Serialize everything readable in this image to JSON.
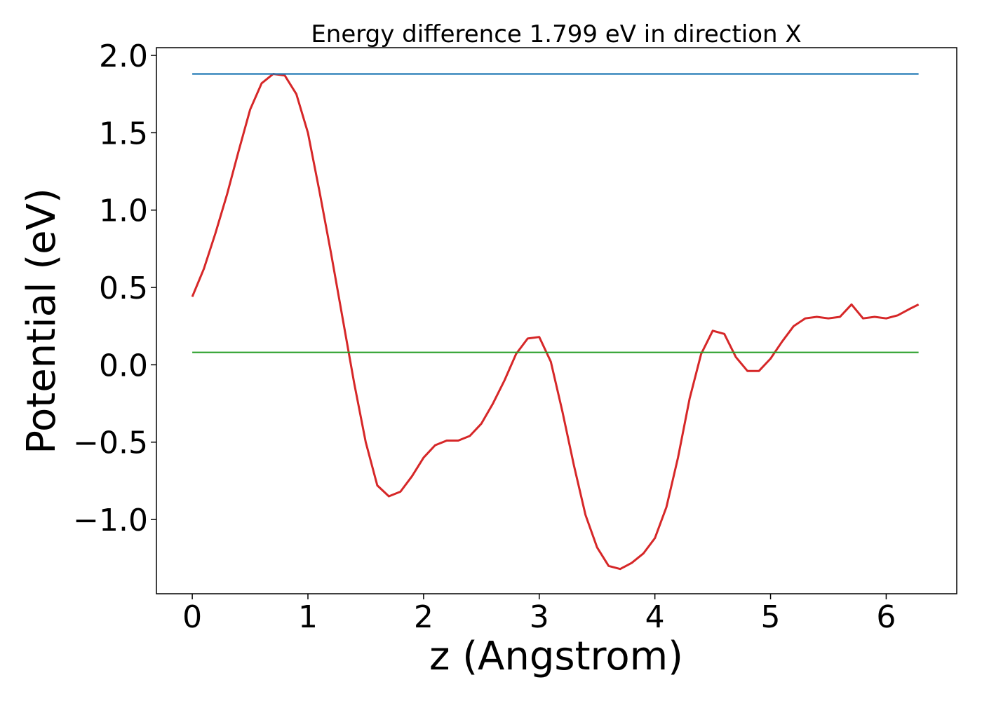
{
  "chart_data": {
    "type": "line",
    "title": "Energy difference 1.799 eV in direction X",
    "xlabel": "z (Angstrom)",
    "ylabel": "Potential (eV)",
    "xlim": [
      -0.31,
      6.61
    ],
    "ylim": [
      -1.48,
      2.05
    ],
    "xticks": [
      {
        "value": 0,
        "label": "0"
      },
      {
        "value": 1,
        "label": "1"
      },
      {
        "value": 2,
        "label": "2"
      },
      {
        "value": 3,
        "label": "3"
      },
      {
        "value": 4,
        "label": "4"
      },
      {
        "value": 5,
        "label": "5"
      },
      {
        "value": 6,
        "label": "6"
      }
    ],
    "yticks": [
      {
        "value": -1.0,
        "label": "−1.0"
      },
      {
        "value": -0.5,
        "label": "−0.5"
      },
      {
        "value": 0.0,
        "label": "0.0"
      },
      {
        "value": 0.5,
        "label": "0.5"
      },
      {
        "value": 1.0,
        "label": "1.0"
      },
      {
        "value": 1.5,
        "label": "1.5"
      },
      {
        "value": 2.0,
        "label": "2.0"
      }
    ],
    "grid": false,
    "series": [
      {
        "color": "#d62728",
        "x": [
          0.0,
          0.1,
          0.2,
          0.3,
          0.4,
          0.5,
          0.6,
          0.7,
          0.8,
          0.9,
          1.0,
          1.1,
          1.2,
          1.3,
          1.4,
          1.5,
          1.6,
          1.7,
          1.8,
          1.9,
          2.0,
          2.1,
          2.2,
          2.3,
          2.4,
          2.5,
          2.6,
          2.7,
          2.8,
          2.9,
          3.0,
          3.1,
          3.2,
          3.3,
          3.4,
          3.5,
          3.6,
          3.7,
          3.8,
          3.9,
          4.0,
          4.1,
          4.2,
          4.3,
          4.4,
          4.5,
          4.6,
          4.7,
          4.8,
          4.9,
          5.0,
          5.1,
          5.2,
          5.3,
          5.4,
          5.5,
          5.6,
          5.7,
          5.8,
          5.9,
          6.0,
          6.1,
          6.2,
          6.28
        ],
        "y": [
          0.44,
          0.62,
          0.85,
          1.1,
          1.38,
          1.65,
          1.82,
          1.88,
          1.87,
          1.75,
          1.5,
          1.12,
          0.72,
          0.3,
          -0.12,
          -0.5,
          -0.78,
          -0.85,
          -0.82,
          -0.72,
          -0.6,
          -0.52,
          -0.49,
          -0.49,
          -0.46,
          -0.38,
          -0.25,
          -0.1,
          0.07,
          0.17,
          0.18,
          0.02,
          -0.3,
          -0.65,
          -0.97,
          -1.18,
          -1.3,
          -1.32,
          -1.28,
          -1.22,
          -1.12,
          -0.92,
          -0.6,
          -0.22,
          0.07,
          0.22,
          0.2,
          0.05,
          -0.04,
          -0.04,
          0.04,
          0.15,
          0.25,
          0.3,
          0.31,
          0.3,
          0.31,
          0.39,
          0.3,
          0.31,
          0.3,
          0.32,
          0.36,
          0.39
        ]
      },
      {
        "color": "#1f77b4",
        "x": [
          0.0,
          6.28
        ],
        "y": [
          1.88,
          1.88
        ]
      },
      {
        "color": "#2ca02c",
        "x": [
          0.0,
          6.28
        ],
        "y": [
          0.08,
          0.08
        ]
      }
    ]
  }
}
